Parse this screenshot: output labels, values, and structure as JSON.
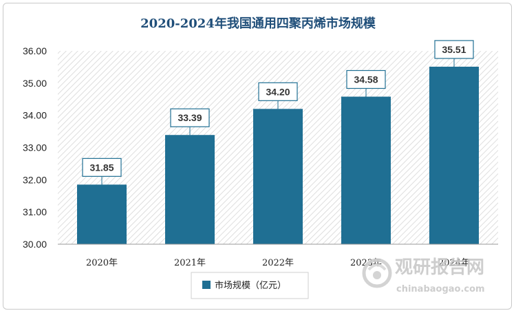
{
  "chart_data": {
    "type": "bar",
    "title": "2020-2024年我国通用四聚丙烯市场规模",
    "categories": [
      "2020年",
      "2021年",
      "2022年",
      "2023年",
      "2024年"
    ],
    "series": [
      {
        "name": "市场规模（亿元）",
        "values": [
          31.85,
          33.39,
          34.2,
          34.58,
          35.51
        ]
      }
    ],
    "data_labels": [
      "31.85",
      "33.39",
      "34.20",
      "34.58",
      "35.51"
    ],
    "y_ticks": [
      "30.00",
      "31.00",
      "32.00",
      "33.00",
      "34.00",
      "35.00",
      "36.00"
    ],
    "ylim": [
      30,
      36
    ],
    "legend_position": "bottom",
    "bar_color": "#1f6f93"
  },
  "watermark": {
    "text_cn": "观研报告网",
    "text_en": "chinabaogao.com"
  }
}
